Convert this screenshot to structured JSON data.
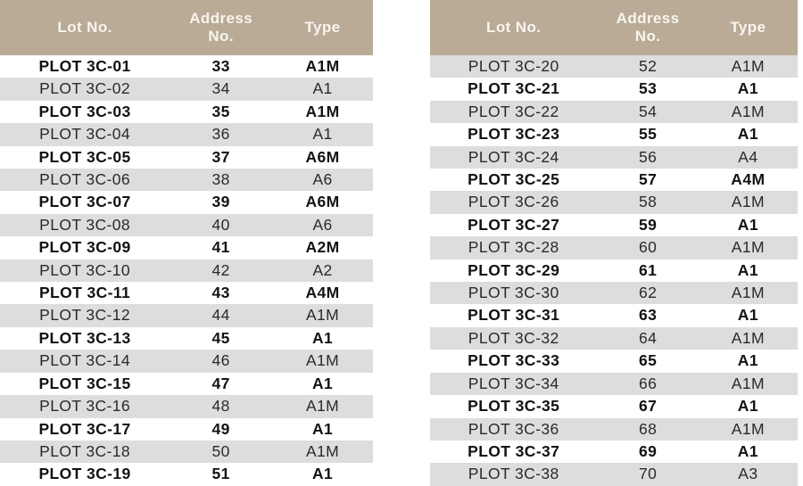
{
  "columns": [
    "Lot No.",
    "Address No.",
    "Type"
  ],
  "colors": {
    "header_bg": "#b9ab96",
    "header_text": "#f8f5ef",
    "stripe_bg": "#dcddde",
    "bold_row_text": "#121212",
    "regular_row_text": "#2a2a2a"
  },
  "tables": [
    {
      "name": "left",
      "first_row_shaded": false,
      "rows": [
        {
          "lot": "PLOT 3C-01",
          "address": "33",
          "type": "A1M"
        },
        {
          "lot": "PLOT 3C-02",
          "address": "34",
          "type": "A1"
        },
        {
          "lot": "PLOT 3C-03",
          "address": "35",
          "type": "A1M"
        },
        {
          "lot": "PLOT 3C-04",
          "address": "36",
          "type": "A1"
        },
        {
          "lot": "PLOT 3C-05",
          "address": "37",
          "type": "A6M"
        },
        {
          "lot": "PLOT 3C-06",
          "address": "38",
          "type": "A6"
        },
        {
          "lot": "PLOT 3C-07",
          "address": "39",
          "type": "A6M"
        },
        {
          "lot": "PLOT 3C-08",
          "address": "40",
          "type": "A6"
        },
        {
          "lot": "PLOT 3C-09",
          "address": "41",
          "type": "A2M"
        },
        {
          "lot": "PLOT 3C-10",
          "address": "42",
          "type": "A2"
        },
        {
          "lot": "PLOT 3C-11",
          "address": "43",
          "type": "A4M"
        },
        {
          "lot": "PLOT 3C-12",
          "address": "44",
          "type": "A1M"
        },
        {
          "lot": "PLOT 3C-13",
          "address": "45",
          "type": "A1"
        },
        {
          "lot": "PLOT 3C-14",
          "address": "46",
          "type": "A1M"
        },
        {
          "lot": "PLOT 3C-15",
          "address": "47",
          "type": "A1"
        },
        {
          "lot": "PLOT 3C-16",
          "address": "48",
          "type": "A1M"
        },
        {
          "lot": "PLOT 3C-17",
          "address": "49",
          "type": "A1"
        },
        {
          "lot": "PLOT 3C-18",
          "address": "50",
          "type": "A1M"
        },
        {
          "lot": "PLOT 3C-19",
          "address": "51",
          "type": "A1"
        }
      ]
    },
    {
      "name": "right",
      "first_row_shaded": true,
      "rows": [
        {
          "lot": "PLOT 3C-20",
          "address": "52",
          "type": "A1M"
        },
        {
          "lot": "PLOT 3C-21",
          "address": "53",
          "type": "A1"
        },
        {
          "lot": "PLOT 3C-22",
          "address": "54",
          "type": "A1M"
        },
        {
          "lot": "PLOT 3C-23",
          "address": "55",
          "type": "A1"
        },
        {
          "lot": "PLOT 3C-24",
          "address": "56",
          "type": "A4"
        },
        {
          "lot": "PLOT 3C-25",
          "address": "57",
          "type": "A4M"
        },
        {
          "lot": "PLOT 3C-26",
          "address": "58",
          "type": "A1M"
        },
        {
          "lot": "PLOT 3C-27",
          "address": "59",
          "type": "A1"
        },
        {
          "lot": "PLOT 3C-28",
          "address": "60",
          "type": "A1M"
        },
        {
          "lot": "PLOT 3C-29",
          "address": "61",
          "type": "A1"
        },
        {
          "lot": "PLOT 3C-30",
          "address": "62",
          "type": "A1M"
        },
        {
          "lot": "PLOT 3C-31",
          "address": "63",
          "type": "A1"
        },
        {
          "lot": "PLOT 3C-32",
          "address": "64",
          "type": "A1M"
        },
        {
          "lot": "PLOT 3C-33",
          "address": "65",
          "type": "A1"
        },
        {
          "lot": "PLOT 3C-34",
          "address": "66",
          "type": "A1M"
        },
        {
          "lot": "PLOT 3C-35",
          "address": "67",
          "type": "A1"
        },
        {
          "lot": "PLOT 3C-36",
          "address": "68",
          "type": "A1M"
        },
        {
          "lot": "PLOT 3C-37",
          "address": "69",
          "type": "A1"
        },
        {
          "lot": "PLOT 3C-38",
          "address": "70",
          "type": "A3"
        }
      ]
    }
  ]
}
